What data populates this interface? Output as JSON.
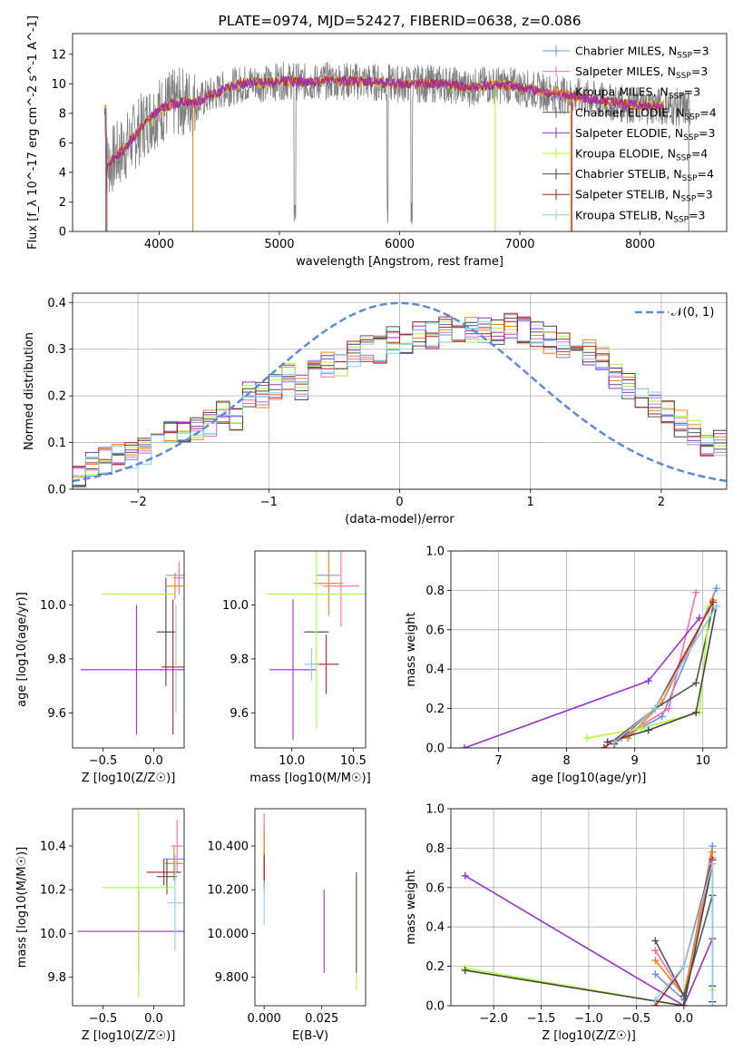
{
  "chart_data": [
    {
      "id": "spectrum",
      "type": "line",
      "title": "PLATE=0974, MJD=52427, FIBERID=0638, z=0.086",
      "xlabel": "wavelength [Angstrom, rest frame]",
      "ylabel": "Flux [f_λ 10^-17 erg cm^-2 s^-1 A^-1]",
      "xlim": [
        3280,
        8720
      ],
      "ylim": [
        0,
        13.4
      ],
      "xticks": [
        4000,
        5000,
        6000,
        7000,
        8000
      ],
      "yticks": [
        0,
        2,
        4,
        6,
        8,
        10,
        12
      ],
      "legend_position": "right",
      "legend": [
        {
          "label": "Chabrier MILES, N_SSP=3",
          "color": "#6495ed"
        },
        {
          "label": "Salpeter MILES, N_SSP=3",
          "color": "#ff69b4"
        },
        {
          "label": "Kroupa MILES, N_SSP=3",
          "color": "#ff7f0e"
        },
        {
          "label": "Chabrier ELODIE, N_SSP=4",
          "color": "#555555"
        },
        {
          "label": "Salpeter ELODIE, N_SSP=3",
          "color": "#9932cc"
        },
        {
          "label": "Kroupa ELODIE, N_SSP=4",
          "color": "#adff2f"
        },
        {
          "label": "Chabrier STELIB, N_SSP=4",
          "color": "#444444"
        },
        {
          "label": "Salpeter STELIB, N_SSP=3",
          "color": "#b22222"
        },
        {
          "label": "Kroupa STELIB, N_SSP=3",
          "color": "#87ceeb"
        }
      ],
      "continuum": [
        [
          3560,
          4.5
        ],
        [
          3700,
          5.5
        ],
        [
          3800,
          6.5
        ],
        [
          3900,
          7.5
        ],
        [
          4000,
          8.2
        ],
        [
          4100,
          8.6
        ],
        [
          4200,
          8.8
        ],
        [
          4300,
          8.7
        ],
        [
          4400,
          9.1
        ],
        [
          4500,
          9.5
        ],
        [
          4600,
          9.8
        ],
        [
          4700,
          10.0
        ],
        [
          4800,
          10.1
        ],
        [
          4900,
          10.0
        ],
        [
          5000,
          10.2
        ],
        [
          5100,
          10.2
        ],
        [
          5200,
          10.1
        ],
        [
          5300,
          10.1
        ],
        [
          5400,
          10.2
        ],
        [
          5500,
          10.2
        ],
        [
          5600,
          10.2
        ],
        [
          5800,
          10.1
        ],
        [
          6000,
          10.0
        ],
        [
          6200,
          10.0
        ],
        [
          6400,
          10.0
        ],
        [
          6563,
          9.7
        ],
        [
          6700,
          9.9
        ],
        [
          6900,
          9.9
        ],
        [
          7100,
          9.6
        ],
        [
          7300,
          9.3
        ],
        [
          7500,
          9.1
        ],
        [
          7700,
          8.8
        ],
        [
          7900,
          8.6
        ],
        [
          8100,
          8.5
        ],
        [
          8300,
          8.4
        ],
        [
          8400,
          8.3
        ]
      ],
      "grid": false
    },
    {
      "id": "residuals",
      "type": "step",
      "xlabel": "(data-model)/error",
      "ylabel": "Normed distribution",
      "xlim": [
        -2.5,
        2.5
      ],
      "ylim": [
        0,
        0.42
      ],
      "xticks": [
        -2,
        -1,
        0,
        1,
        2
      ],
      "yticks": [
        0.0,
        0.1,
        0.2,
        0.3,
        0.4
      ],
      "legend_label": "𝒩(0, 1)",
      "legend_position": "top-right",
      "grid": true,
      "bin_width": 0.1,
      "base_hist": [
        0.02,
        0.05,
        0.06,
        0.08,
        0.07,
        0.08,
        0.1,
        0.12,
        0.13,
        0.13,
        0.14,
        0.17,
        0.15,
        0.2,
        0.2,
        0.22,
        0.24,
        0.22,
        0.25,
        0.27,
        0.27,
        0.29,
        0.3,
        0.3,
        0.32,
        0.31,
        0.33,
        0.33,
        0.34,
        0.33,
        0.34,
        0.34,
        0.34,
        0.35,
        0.34,
        0.33,
        0.32,
        0.31,
        0.3,
        0.29,
        0.28,
        0.24,
        0.22,
        0.2,
        0.18,
        0.16,
        0.14,
        0.12,
        0.1,
        0.1
      ],
      "series_colors": [
        "#6495ed",
        "#ff69b4",
        "#ff7f0e",
        "#555555",
        "#9932cc",
        "#adff2f",
        "#444444",
        "#b22222",
        "#87ceeb"
      ]
    },
    {
      "id": "age-vs-Z",
      "type": "errorbar",
      "xlabel": "Z [log10(Z/Z☉)]",
      "ylabel": "age [log10(age/yr)]",
      "xlim": [
        -0.8,
        0.3
      ],
      "ylim": [
        9.47,
        10.2
      ],
      "xticks": [
        -0.5,
        0.0
      ],
      "yticks": [
        9.6,
        9.8,
        10.0
      ],
      "points": [
        {
          "x": 0.22,
          "y": 10.11,
          "xerr": 0.1,
          "yerr": 0.0,
          "color": "#6495ed"
        },
        {
          "x": 0.25,
          "y": 10.1,
          "xerr": 0.06,
          "yerr": 0.06,
          "color": "#ff69b4"
        },
        {
          "x": 0.21,
          "y": 10.07,
          "xerr": 0.08,
          "yerr": 0.05,
          "color": "#ff7f0e"
        },
        {
          "x": 0.12,
          "y": 9.9,
          "xerr": 0.09,
          "yerr": 0.2,
          "color": "#444444"
        },
        {
          "x": -0.17,
          "y": 9.76,
          "xerr": 0.55,
          "yerr": 0.24,
          "color": "#9932cc"
        },
        {
          "x": -0.15,
          "y": 10.04,
          "xerr": 0.35,
          "yerr": 0.0,
          "color": "#adff2f"
        },
        {
          "x": 0.19,
          "y": 9.77,
          "xerr": 0.11,
          "yerr": 0.25,
          "color": "#b22222"
        },
        {
          "x": 0.22,
          "y": 9.8,
          "xerr": 0.0,
          "yerr": 0.2,
          "color": "#87ceeb"
        }
      ]
    },
    {
      "id": "age-vs-mass",
      "type": "errorbar",
      "xlabel": "mass [log10(M/M☉)]",
      "ylabel": "",
      "xlim": [
        9.7,
        10.6
      ],
      "ylim": [
        9.47,
        10.2
      ],
      "xticks": [
        10.0,
        10.5
      ],
      "yticks": [
        9.6,
        9.8,
        10.0
      ],
      "points": [
        {
          "x": 10.3,
          "y": 10.11,
          "xerr": 0.1,
          "yerr": 0.0,
          "color": "#6495ed"
        },
        {
          "x": 10.4,
          "y": 10.07,
          "xerr": 0.15,
          "yerr": 0.15,
          "color": "#ff69b4"
        },
        {
          "x": 10.3,
          "y": 10.08,
          "xerr": 0.12,
          "yerr": 0.12,
          "color": "#ff7f0e"
        },
        {
          "x": 10.2,
          "y": 9.9,
          "xerr": 0.1,
          "yerr": 0.0,
          "color": "#444444"
        },
        {
          "x": 10.01,
          "y": 9.76,
          "xerr": 0.19,
          "yerr": 0.26,
          "color": "#9932cc"
        },
        {
          "x": 10.2,
          "y": 10.04,
          "xerr": 0.4,
          "yerr": 0.5,
          "color": "#adff2f"
        },
        {
          "x": 10.28,
          "y": 9.78,
          "xerr": 0.1,
          "yerr": 0.11,
          "color": "#b22222"
        },
        {
          "x": 10.16,
          "y": 9.78,
          "xerr": 0.06,
          "yerr": 0.06,
          "color": "#87ceeb"
        }
      ]
    },
    {
      "id": "mass-weight-vs-age",
      "type": "line",
      "xlabel": "age [log10(age/yr)]",
      "ylabel": "mass weight",
      "xlim": [
        6.3,
        10.35
      ],
      "ylim": [
        0,
        1.0
      ],
      "xticks": [
        7,
        8,
        9,
        10
      ],
      "yticks": [
        0.0,
        0.2,
        0.4,
        0.6,
        0.8,
        1.0
      ],
      "grid": true,
      "series": [
        {
          "color": "#6495ed",
          "points": [
            [
              8.7,
              0.03
            ],
            [
              9.4,
              0.16
            ],
            [
              10.2,
              0.81
            ]
          ]
        },
        {
          "color": "#ff69b4",
          "points": [
            [
              8.8,
              0.05
            ],
            [
              9.5,
              0.2
            ],
            [
              9.9,
              0.79
            ]
          ]
        },
        {
          "color": "#ff7f0e",
          "points": [
            [
              8.9,
              0.05
            ],
            [
              9.4,
              0.23
            ],
            [
              10.15,
              0.75
            ]
          ]
        },
        {
          "color": "#555555",
          "points": [
            [
              8.7,
              0.02
            ],
            [
              9.3,
              0.2
            ],
            [
              9.9,
              0.33
            ],
            [
              10.15,
              0.72
            ]
          ]
        },
        {
          "color": "#9932cc",
          "points": [
            [
              6.5,
              0.0
            ],
            [
              9.2,
              0.34
            ],
            [
              9.95,
              0.66
            ]
          ]
        },
        {
          "color": "#adff2f",
          "points": [
            [
              8.3,
              0.05
            ],
            [
              9.1,
              0.1
            ],
            [
              9.95,
              0.18
            ],
            [
              10.1,
              0.72
            ]
          ]
        },
        {
          "color": "#444444",
          "points": [
            [
              8.6,
              0.03
            ],
            [
              9.2,
              0.09
            ],
            [
              9.9,
              0.18
            ],
            [
              10.2,
              0.72
            ]
          ]
        },
        {
          "color": "#b22222",
          "points": [
            [
              8.55,
              0.0
            ],
            [
              9.3,
              0.2
            ],
            [
              10.15,
              0.74
            ]
          ]
        },
        {
          "color": "#87ceeb",
          "points": [
            [
              8.7,
              0.03
            ],
            [
              9.3,
              0.2
            ],
            [
              10.2,
              0.72
            ]
          ]
        }
      ]
    },
    {
      "id": "mass-vs-Z",
      "type": "errorbar",
      "xlabel": "Z [log10(Z/Z☉)]",
      "ylabel": "mass [log10(M/M☉)]",
      "xlim": [
        -0.8,
        0.3
      ],
      "ylim": [
        9.67,
        10.57
      ],
      "xticks": [
        -0.5,
        0.0
      ],
      "yticks": [
        9.8,
        10.0,
        10.2,
        10.4
      ],
      "points": [
        {
          "x": 0.2,
          "y": 10.34,
          "xerr": 0.1,
          "yerr": 0.0,
          "color": "#6495ed"
        },
        {
          "x": 0.23,
          "y": 10.4,
          "xerr": 0.06,
          "yerr": 0.12,
          "color": "#ff69b4"
        },
        {
          "x": 0.2,
          "y": 10.32,
          "xerr": 0.09,
          "yerr": 0.08,
          "color": "#ff7f0e"
        },
        {
          "x": 0.13,
          "y": 10.26,
          "xerr": 0.1,
          "yerr": 0.08,
          "color": "#444444"
        },
        {
          "x": -0.15,
          "y": 10.01,
          "xerr": 0.6,
          "yerr": 0.19,
          "color": "#9932cc"
        },
        {
          "x": -0.15,
          "y": 10.21,
          "xerr": 0.35,
          "yerr": 0.5,
          "color": "#adff2f"
        },
        {
          "x": 0.1,
          "y": 10.28,
          "xerr": 0.17,
          "yerr": 0.06,
          "color": "#b22222"
        },
        {
          "x": 0.21,
          "y": 10.14,
          "xerr": 0.08,
          "yerr": 0.22,
          "color": "#87ceeb"
        }
      ]
    },
    {
      "id": "mass-vs-EBV",
      "type": "errorbar",
      "xlabel": "E(B-V)",
      "ylabel": "",
      "xlim": [
        -0.004,
        0.044
      ],
      "ylim": [
        9.67,
        10.57
      ],
      "xticks": [
        0.0,
        0.025
      ],
      "yticks": [
        9.8,
        10.0,
        10.2,
        10.4
      ],
      "points": [
        {
          "x": 0.0,
          "y": 10.38,
          "xerr": 0,
          "yerr": 0.12,
          "color": "#6495ed"
        },
        {
          "x": 0.0,
          "y": 10.43,
          "xerr": 0,
          "yerr": 0.12,
          "color": "#ff69b4"
        },
        {
          "x": 0.0,
          "y": 10.36,
          "xerr": 0,
          "yerr": 0.1,
          "color": "#ff7f0e"
        },
        {
          "x": 0.0,
          "y": 10.28,
          "xerr": 0,
          "yerr": 0.08,
          "color": "#444444"
        },
        {
          "x": 0.026,
          "y": 10.01,
          "xerr": 0,
          "yerr": 0.19,
          "color": "#9932cc"
        },
        {
          "x": 0.04,
          "y": 10.0,
          "xerr": 0,
          "yerr": 0.26,
          "color": "#adff2f"
        },
        {
          "x": 0.04,
          "y": 10.05,
          "xerr": 0,
          "yerr": 0.23,
          "color": "#555555"
        },
        {
          "x": 0.0,
          "y": 10.28,
          "xerr": 0,
          "yerr": 0.06,
          "color": "#b22222"
        },
        {
          "x": 0.0,
          "y": 10.14,
          "xerr": 0,
          "yerr": 0.1,
          "color": "#87ceeb"
        }
      ]
    },
    {
      "id": "mass-weight-vs-Z",
      "type": "line",
      "xlabel": "Z [log10(Z/Z☉)]",
      "ylabel": "mass weight",
      "xlim": [
        -2.45,
        0.45
      ],
      "ylim": [
        0,
        1.0
      ],
      "xticks": [
        -2.0,
        -1.5,
        -1.0,
        -0.5,
        0.0
      ],
      "yticks": [
        0.0,
        0.2,
        0.4,
        0.6,
        0.8,
        1.0
      ],
      "grid": true,
      "series": [
        {
          "color": "#6495ed",
          "points": [
            [
              -0.3,
              0.16
            ],
            [
              0.0,
              0.03
            ],
            [
              0.3,
              0.81
            ]
          ]
        },
        {
          "color": "#ff69b4",
          "points": [
            [
              -0.3,
              0.28
            ],
            [
              0.0,
              0.05
            ],
            [
              0.3,
              0.75
            ]
          ]
        },
        {
          "color": "#ff7f0e",
          "points": [
            [
              -0.3,
              0.23
            ],
            [
              0.0,
              0.05
            ],
            [
              0.3,
              0.78
            ]
          ]
        },
        {
          "color": "#555555",
          "points": [
            [
              -0.3,
              0.33
            ],
            [
              0.0,
              0.05
            ],
            [
              0.3,
              0.56
            ],
            [
              0.3,
              0.1
            ]
          ]
        },
        {
          "color": "#9932cc",
          "points": [
            [
              -2.3,
              0.66
            ],
            [
              0.0,
              0.0
            ],
            [
              0.3,
              0.34
            ]
          ]
        },
        {
          "color": "#adff2f",
          "points": [
            [
              -2.3,
              0.19
            ],
            [
              0.0,
              0.0
            ],
            [
              0.3,
              0.72
            ],
            [
              0.3,
              0.08
            ]
          ]
        },
        {
          "color": "#444444",
          "points": [
            [
              -2.3,
              0.18
            ],
            [
              0.0,
              0.0
            ],
            [
              0.3,
              0.72
            ],
            [
              0.3,
              0.02
            ]
          ]
        },
        {
          "color": "#b22222",
          "points": [
            [
              -0.3,
              0.0
            ],
            [
              0.0,
              0.2
            ],
            [
              0.3,
              0.74
            ]
          ]
        },
        {
          "color": "#87ceeb",
          "points": [
            [
              -0.3,
              0.03
            ],
            [
              0.0,
              0.2
            ],
            [
              0.3,
              0.72
            ],
            [
              0.3,
              0.0
            ]
          ]
        }
      ]
    }
  ]
}
